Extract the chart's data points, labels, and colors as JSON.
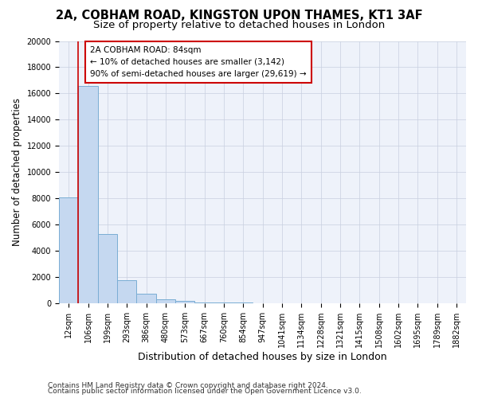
{
  "title_line1": "2A, COBHAM ROAD, KINGSTON UPON THAMES, KT1 3AF",
  "title_line2": "Size of property relative to detached houses in London",
  "xlabel": "Distribution of detached houses by size in London",
  "ylabel": "Number of detached properties",
  "bar_color": "#c5d8f0",
  "bar_edge_color": "#7aadd4",
  "categories": [
    "12sqm",
    "106sqm",
    "199sqm",
    "293sqm",
    "386sqm",
    "480sqm",
    "573sqm",
    "667sqm",
    "760sqm",
    "854sqm",
    "947sqm",
    "1041sqm",
    "1134sqm",
    "1228sqm",
    "1321sqm",
    "1415sqm",
    "1508sqm",
    "1602sqm",
    "1695sqm",
    "1789sqm",
    "1882sqm"
  ],
  "values": [
    8100,
    16600,
    5300,
    1800,
    750,
    300,
    170,
    90,
    60,
    50,
    0,
    0,
    0,
    0,
    0,
    0,
    0,
    0,
    0,
    0,
    0
  ],
  "ylim": [
    0,
    20000
  ],
  "yticks": [
    0,
    2000,
    4000,
    6000,
    8000,
    10000,
    12000,
    14000,
    16000,
    18000,
    20000
  ],
  "vline_x": 0.5,
  "vline_color": "#cc0000",
  "annotation_text": "2A COBHAM ROAD: 84sqm\n← 10% of detached houses are smaller (3,142)\n90% of semi-detached houses are larger (29,619) →",
  "annotation_box_color": "#ffffff",
  "annotation_box_edge_color": "#cc0000",
  "footer_line1": "Contains HM Land Registry data © Crown copyright and database right 2024.",
  "footer_line2": "Contains public sector information licensed under the Open Government Licence v3.0.",
  "background_color": "#eef2fa",
  "grid_color": "#c8cfe0",
  "title_fontsize": 10.5,
  "subtitle_fontsize": 9.5,
  "tick_fontsize": 7,
  "ylabel_fontsize": 8.5,
  "xlabel_fontsize": 9,
  "footer_fontsize": 6.5
}
